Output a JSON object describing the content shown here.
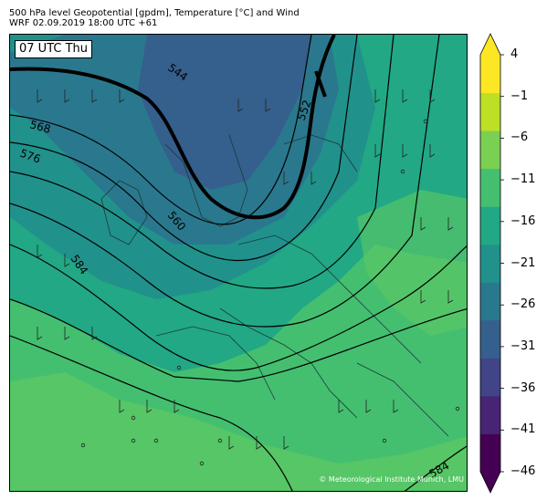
{
  "header": {
    "title_line1": "500 hPa level Geopotential [gpdm], Temperature [°C] and Wind",
    "title_line2": "WRF 02.09.2019 18:00 UTC +61"
  },
  "map": {
    "time_label": "07 UTC Thu",
    "copyright": "© Meteorological Institute Munich, LMU",
    "contour_labels": [
      "544",
      "552",
      "560",
      "568",
      "576",
      "584",
      "584"
    ],
    "colors": {
      "ocean_dark": "#2f6f8e",
      "border": "#1a1a1a",
      "contour": "#000000"
    }
  },
  "colorbar": {
    "tick_labels": [
      "4",
      "−1",
      "−6",
      "−11",
      "−16",
      "−21",
      "−26",
      "−31",
      "−36",
      "−41",
      "−46"
    ],
    "colors": [
      "#440154",
      "#482475",
      "#414487",
      "#355f8d",
      "#2a788e",
      "#21918c",
      "#22a884",
      "#44bf70",
      "#7ad151",
      "#bddf26",
      "#fde725"
    ]
  }
}
